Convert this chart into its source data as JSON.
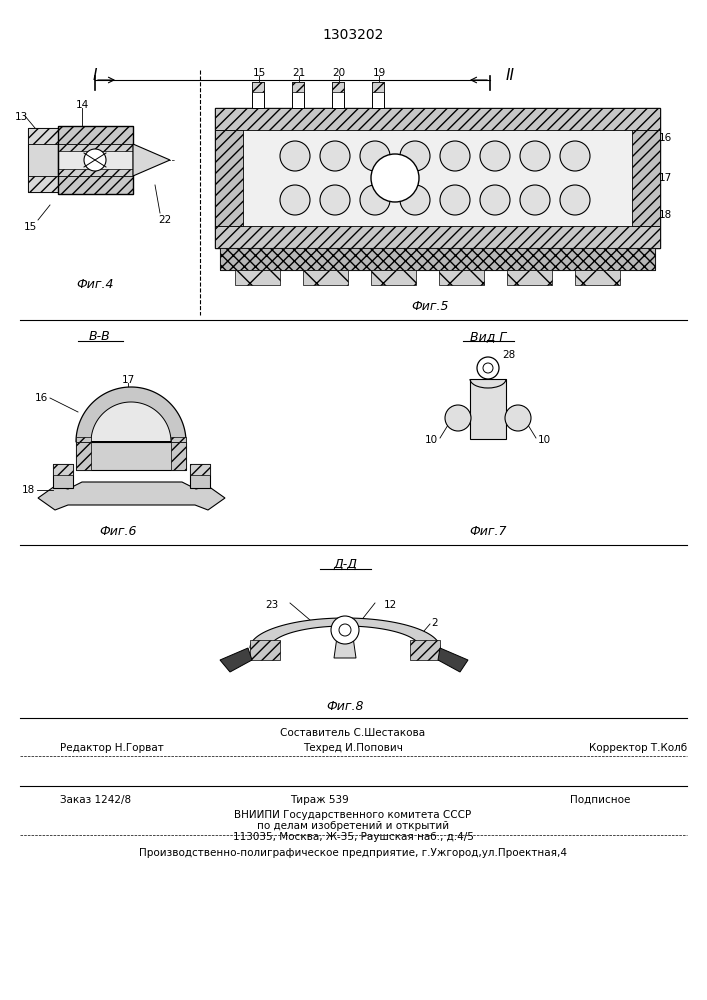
{
  "patent_number": "1303202",
  "bg_color": "#ffffff",
  "line_color": "#000000",
  "footer": {
    "line1_center": "Составитель С.Шестакова",
    "line2_left": "Редактор Н.Горват",
    "line2_center": "Техред И.Попович",
    "line2_right": "Корректор Т.Колб",
    "line3_left": "Заказ 1242/8",
    "line3_center": "Тираж 539",
    "line3_right": "Подписное",
    "line4": "ВНИИПИ Государственного комитета СССР",
    "line5": "по делам изобретений и открытий",
    "line6": "113035, Москва, Ж-35, Раушская наб., д.4/5",
    "line7": "Производственно-полиграфическое предприятие, г.Ужгород,ул.Проектная,4"
  },
  "fig_labels": {
    "fig4": "Фиг.4",
    "fig5": "Фиг.5",
    "fig6": "Фиг.6",
    "fig7": "Фиг.7",
    "fig8": "Фиг.8"
  }
}
